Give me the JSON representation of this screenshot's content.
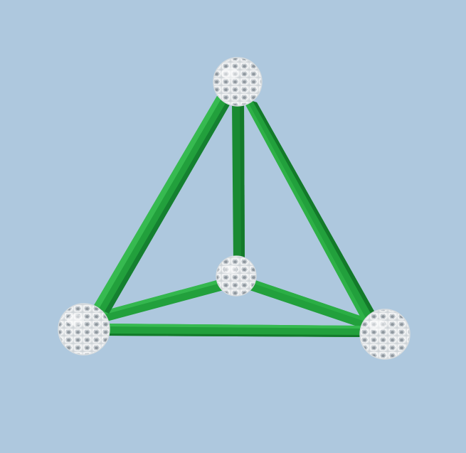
{
  "scene": {
    "subject": "tetrahedron-model",
    "background_color": "#aec8de",
    "strut_color": "#22a03c",
    "strut_shadow_color": "#137a2a",
    "strut_highlight_color": "#3cc055",
    "node_color": "#f2f3f3",
    "node_pore_color": "#c9ced3",
    "node_dark_pore_color": "#8e959c"
  }
}
